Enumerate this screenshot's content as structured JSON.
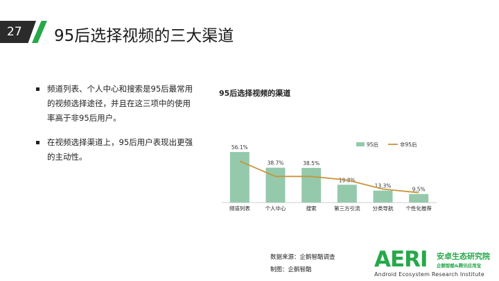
{
  "slide": {
    "number": "27",
    "title": "95后选择视频的三大渠道"
  },
  "bullets": [
    "频道列表、个人中心和搜索是95后最常用的视频选择途径，并且在这三项中的使用率高于非95后用户。",
    "在视频选择渠道上，95后用户表现出更强的主动性。"
  ],
  "chart_data": {
    "type": "bar",
    "title": "95后选择视频的渠道",
    "categories": [
      "频道列表",
      "个人中心",
      "搜索",
      "第三方引流",
      "分类导航",
      "个性化推荐"
    ],
    "series": [
      {
        "name": "95后",
        "kind": "bar",
        "color": "#95c9ac",
        "values": [
          56.1,
          38.7,
          38.5,
          19.8,
          13.3,
          9.5
        ],
        "labels": [
          "56.1%",
          "38.7%",
          "38.5%",
          "19.8%",
          "13.3%",
          "9.5%"
        ]
      },
      {
        "name": "非95后",
        "kind": "line",
        "color": "#c8943a",
        "values": [
          46,
          29,
          29,
          25,
          15,
          11
        ]
      }
    ],
    "ylim": [
      0,
      60
    ],
    "grid": false,
    "legend": "top-right"
  },
  "source": {
    "line1": "数据来源：企鹅智酷调查",
    "line2": "制图：企鹅智酷"
  },
  "logo": {
    "mark": "AERI",
    "cn": "安卓生态研究院",
    "sub": "企鹅智酷&腾讯应用宝",
    "en": "Android Ecosystem Research Institute"
  },
  "colors": {
    "accent_green": "#27a84a",
    "dark": "#2b2b2b"
  }
}
